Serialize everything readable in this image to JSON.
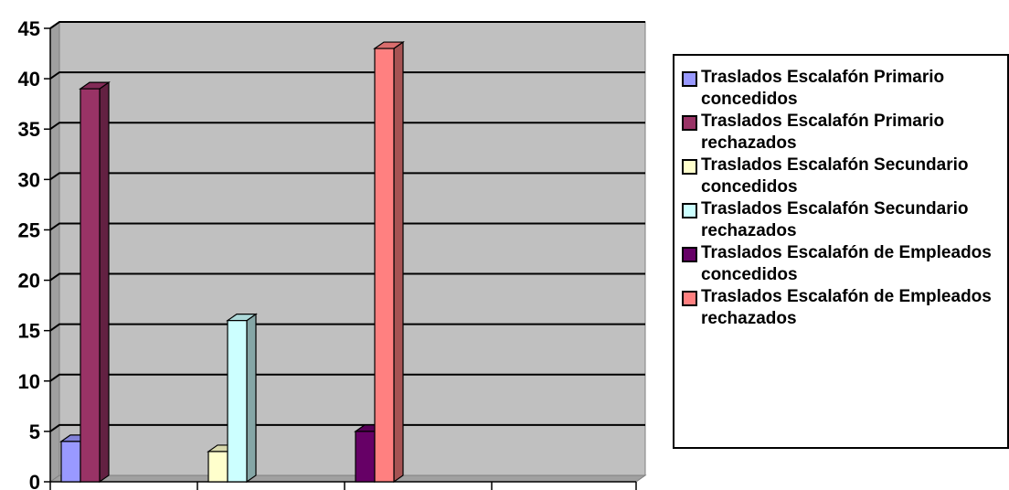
{
  "chart_data": {
    "type": "bar",
    "style": "3d-clustered-column",
    "categories": [
      "",
      "",
      ""
    ],
    "series": [
      {
        "name": "Traslados Escalafón Primario concedidos",
        "values": [
          4,
          0,
          0
        ],
        "color": "#9999FF"
      },
      {
        "name": "Traslados Escalafón Primario rechazados",
        "values": [
          39,
          0,
          0
        ],
        "color": "#993366"
      },
      {
        "name": "Traslados Escalafón Secundario concedidos",
        "values": [
          0,
          3,
          0
        ],
        "color": "#FFFFCC"
      },
      {
        "name": "Traslados Escalafón Secundario rechazados",
        "values": [
          0,
          16,
          0
        ],
        "color": "#CCFFFF"
      },
      {
        "name": "Traslados Escalafón de Empleados concedidos",
        "values": [
          0,
          0,
          5
        ],
        "color": "#660066"
      },
      {
        "name": "Traslados Escalafón de Empleados rechazados",
        "values": [
          0,
          0,
          43
        ],
        "color": "#FF8080"
      }
    ],
    "ylim": [
      0,
      45
    ],
    "yticks": [
      "0",
      "5",
      "10",
      "15",
      "20",
      "25",
      "30",
      "35",
      "40",
      "45"
    ],
    "grid": true,
    "plot_background": "#C0C0C0",
    "legend_position": "right"
  }
}
